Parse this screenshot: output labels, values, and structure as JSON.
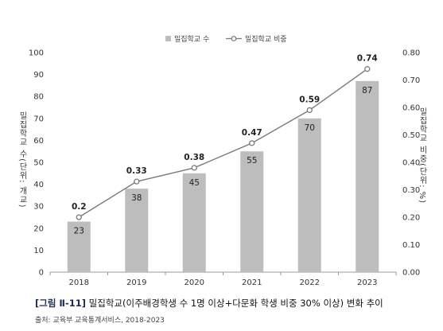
{
  "chart_data": {
    "type": "bar",
    "categories": [
      "2018",
      "2019",
      "2020",
      "2021",
      "2022",
      "2023"
    ],
    "series": [
      {
        "name": "밀집학교 수",
        "type": "bar",
        "axis": "left",
        "values": [
          23,
          38,
          45,
          55,
          70,
          87
        ],
        "labels": [
          "23",
          "38",
          "45",
          "55",
          "70",
          "87"
        ],
        "color": "#bdbdbd"
      },
      {
        "name": "밀집학교 비중",
        "type": "line",
        "axis": "right",
        "values": [
          0.2,
          0.33,
          0.38,
          0.47,
          0.59,
          0.74
        ],
        "labels": [
          "0.2",
          "0.33",
          "0.38",
          "0.47",
          "0.59",
          "0.74"
        ],
        "color": "#7a7a7a"
      }
    ],
    "ylim_left": [
      0,
      100
    ],
    "yticks_left": [
      "0",
      "10",
      "20",
      "30",
      "40",
      "50",
      "60",
      "70",
      "80",
      "90",
      "100"
    ],
    "ylim_right": [
      0,
      0.8
    ],
    "yticks_right": [
      "0.00",
      "0.10",
      "0.20",
      "0.30",
      "0.40",
      "0.50",
      "0.60",
      "0.70",
      "0.80"
    ],
    "ylabel_left": "밀집학교 수(단위: 개교)",
    "ylabel_right": "밀집학교 비중(단위: %)",
    "legend_position": "top-center",
    "grid": false
  },
  "caption": {
    "figure_number": "[그림 Ⅱ-11]",
    "text": " 밀집학교(이주배경학생 수 1명 이상+다문화 학생 비중 30% 이상) 변화 추이"
  },
  "source": "출처: 교육부 교육통계서비스, 2018-2023"
}
